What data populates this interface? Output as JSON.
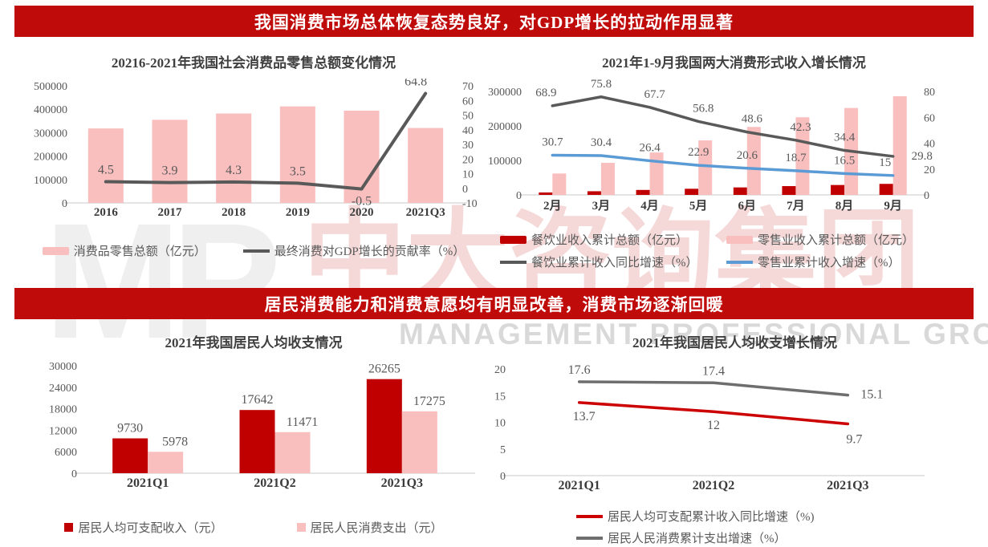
{
  "banners": {
    "top": "我国消费市场总体恢复态势良好，对GDP增长的拉动作用显著",
    "middle": "居民消费能力和消费意愿均有明显改善，消费市场逐渐回暖"
  },
  "watermark": {
    "logo": "MP",
    "cn": "中大咨询集团",
    "en": "MANAGEMENT PROFESSIONAL GROUP"
  },
  "colors": {
    "banner_red": "#C00B0B",
    "dark_red": "#C00000",
    "pink": "#F9BEBE",
    "gray_line": "#595959",
    "blue_line": "#5B9BD5",
    "axis_line": "#C9C9C9",
    "label_gray": "#595959",
    "title_gray": "#404040"
  },
  "chart_data": [
    {
      "type": "bar+line",
      "title": "20216-2021年我国社会消费品零售总额变化情况",
      "categories": [
        "2016",
        "2017",
        "2018",
        "2019",
        "2020",
        "2021Q3"
      ],
      "left_axis": {
        "min": 0,
        "max": 500000,
        "ticks": [
          "0",
          "100000",
          "200000",
          "300000",
          "400000",
          "500000"
        ]
      },
      "right_axis": {
        "min": -10,
        "max": 70,
        "ticks": [
          "-10",
          "0",
          "10",
          "20",
          "30",
          "40",
          "50",
          "60",
          "70"
        ]
      },
      "series": [
        {
          "name": "消费品零售总额（亿元）",
          "type": "bar",
          "axis": "left",
          "color": "#F9BEBE",
          "values": [
            318000,
            355000,
            382000,
            412000,
            394000,
            320000
          ]
        },
        {
          "name": "最终消费对GDP增长的贡献率（%）",
          "type": "line",
          "axis": "right",
          "color": "#595959",
          "values": [
            4.5,
            3.9,
            4.3,
            3.5,
            -0.5,
            64.8
          ],
          "labels": [
            "4.5",
            "3.9",
            "4.3",
            "3.5",
            "-0.5",
            "64.8"
          ]
        }
      ]
    },
    {
      "type": "bar+line",
      "title": "2021年1-9月我国两大消费形式收入增长情况",
      "categories": [
        "2月",
        "3月",
        "4月",
        "5月",
        "6月",
        "7月",
        "8月",
        "9月"
      ],
      "left_axis": {
        "min": 0,
        "max": 300000,
        "ticks": [
          "0",
          "100000",
          "200000",
          "300000"
        ]
      },
      "right_axis": {
        "min": 0,
        "max": 80,
        "ticks": [
          "0",
          "20",
          "40",
          "60",
          "80"
        ]
      },
      "series": [
        {
          "name": "餐饮业收入累计总额（亿元）",
          "type": "bar",
          "axis": "left",
          "color": "#C00000",
          "values": [
            7100,
            10600,
            14400,
            17800,
            21700,
            25500,
            28700,
            32000
          ]
        },
        {
          "name": "零售业收入累计总额（亿元）",
          "type": "bar",
          "axis": "left",
          "color": "#F9BEBE",
          "values": [
            62000,
            93000,
            123000,
            158000,
            197000,
            225000,
            252000,
            286000
          ]
        },
        {
          "name": "餐饮业累计收入同比增速（%）",
          "type": "line",
          "axis": "right",
          "color": "#595959",
          "values": [
            68.9,
            75.8,
            67.7,
            56.8,
            48.6,
            42.3,
            34.4,
            29.8
          ],
          "labels": [
            "68.9",
            "75.8",
            "67.7",
            "56.8",
            "48.6",
            "42.3",
            "34.4",
            "29.8"
          ]
        },
        {
          "name": "零售业累计收入增速（%）",
          "type": "line",
          "axis": "right",
          "color": "#5B9BD5",
          "values": [
            30.7,
            30.4,
            26.4,
            22.9,
            20.6,
            18.7,
            16.5,
            15
          ],
          "labels": [
            "30.7",
            "30.4",
            "26.4",
            "22.9",
            "20.6",
            "18.7",
            "16.5",
            "15"
          ]
        }
      ]
    },
    {
      "type": "bar",
      "title": "2021年我国居民人均收支情况",
      "categories": [
        "2021Q1",
        "2021Q2",
        "2021Q3"
      ],
      "left_axis": {
        "min": 0,
        "max": 30000,
        "ticks": [
          "0",
          "6000",
          "12000",
          "18000",
          "24000",
          "30000"
        ]
      },
      "series": [
        {
          "name": "居民人均可支配收入（元）",
          "type": "bar",
          "axis": "left",
          "color": "#C00000",
          "values": [
            9730,
            17642,
            26265
          ],
          "labels": [
            "9730",
            "17642",
            "26265"
          ]
        },
        {
          "name": "居民人民消费支出（元）",
          "type": "bar",
          "axis": "left",
          "color": "#F9BEBE",
          "values": [
            5978,
            11471,
            17275
          ],
          "labels": [
            "5978",
            "11471",
            "17275"
          ]
        }
      ]
    },
    {
      "type": "line",
      "title": "2021年我国居民人均收支增长情况",
      "categories": [
        "2021Q1",
        "2021Q2",
        "2021Q3"
      ],
      "left_axis": {
        "min": 0,
        "max": 20,
        "ticks": [
          "0",
          "5",
          "10",
          "15",
          "20"
        ]
      },
      "series": [
        {
          "name": "居民人均可支配累计收入同比增速（%)",
          "type": "line",
          "axis": "left",
          "color": "#CC0000",
          "values": [
            13.7,
            12,
            9.7
          ],
          "labels": [
            "13.7",
            "12",
            "9.7"
          ]
        },
        {
          "name": "居民人民消费累计支出增速（%）",
          "type": "line",
          "axis": "left",
          "color": "#6E6E6E",
          "values": [
            17.6,
            17.4,
            15.1
          ],
          "labels": [
            "17.6",
            "17.4",
            "15.1"
          ]
        }
      ]
    }
  ]
}
